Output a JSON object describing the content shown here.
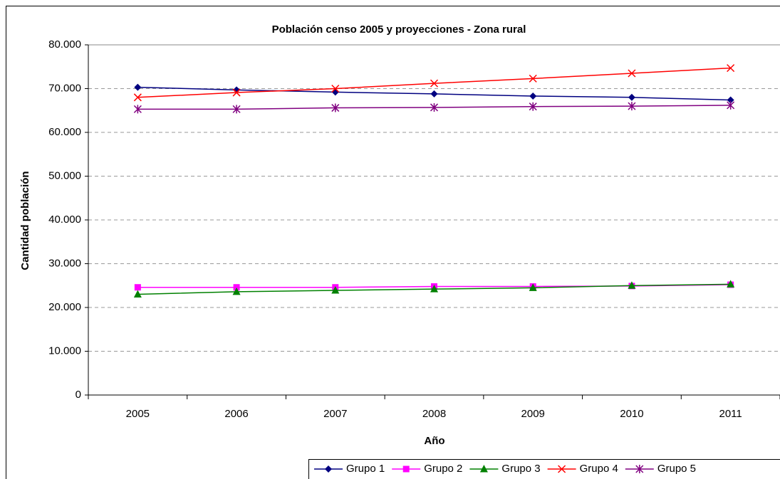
{
  "chart_data": {
    "type": "line",
    "title": "Población censo 2005 y proyecciones - Zona rural",
    "x_label": "Año",
    "y_label": "Cantidad población",
    "categories": [
      "2005",
      "2006",
      "2007",
      "2008",
      "2009",
      "2010",
      "2011"
    ],
    "series": [
      {
        "name": "Grupo 1",
        "color": "#000080",
        "marker": "diamond",
        "values": [
          70300,
          69700,
          69200,
          68800,
          68300,
          68000,
          67400
        ]
      },
      {
        "name": "Grupo 2",
        "color": "#ff00ff",
        "marker": "square",
        "values": [
          24600,
          24600,
          24600,
          24800,
          24800,
          24900,
          25200
        ]
      },
      {
        "name": "Grupo 3",
        "color": "#008000",
        "marker": "triangle",
        "values": [
          23000,
          23600,
          23900,
          24200,
          24500,
          25000,
          25300
        ]
      },
      {
        "name": "Grupo 4",
        "color": "#ff0000",
        "marker": "x",
        "values": [
          68000,
          69100,
          70000,
          71200,
          72300,
          73500,
          74700
        ]
      },
      {
        "name": "Grupo 5",
        "color": "#800080",
        "marker": "asterisk",
        "values": [
          65300,
          65300,
          65600,
          65700,
          65900,
          66000,
          66200
        ]
      }
    ],
    "ylim": [
      0,
      80000
    ],
    "yticks": [
      0,
      {
        "value": 10000,
        "label": "10.000"
      },
      {
        "value": 20000,
        "label": "20.000"
      },
      {
        "value": 30000,
        "label": "30.000"
      },
      {
        "value": 40000,
        "label": "40.000"
      },
      {
        "value": 50000,
        "label": "50.000"
      },
      {
        "value": 60000,
        "label": "60.000"
      },
      {
        "value": 70000,
        "label": "70.000"
      },
      {
        "value": 80000,
        "label": "80.000"
      }
    ],
    "grid": true,
    "legend": "bottom-right"
  }
}
